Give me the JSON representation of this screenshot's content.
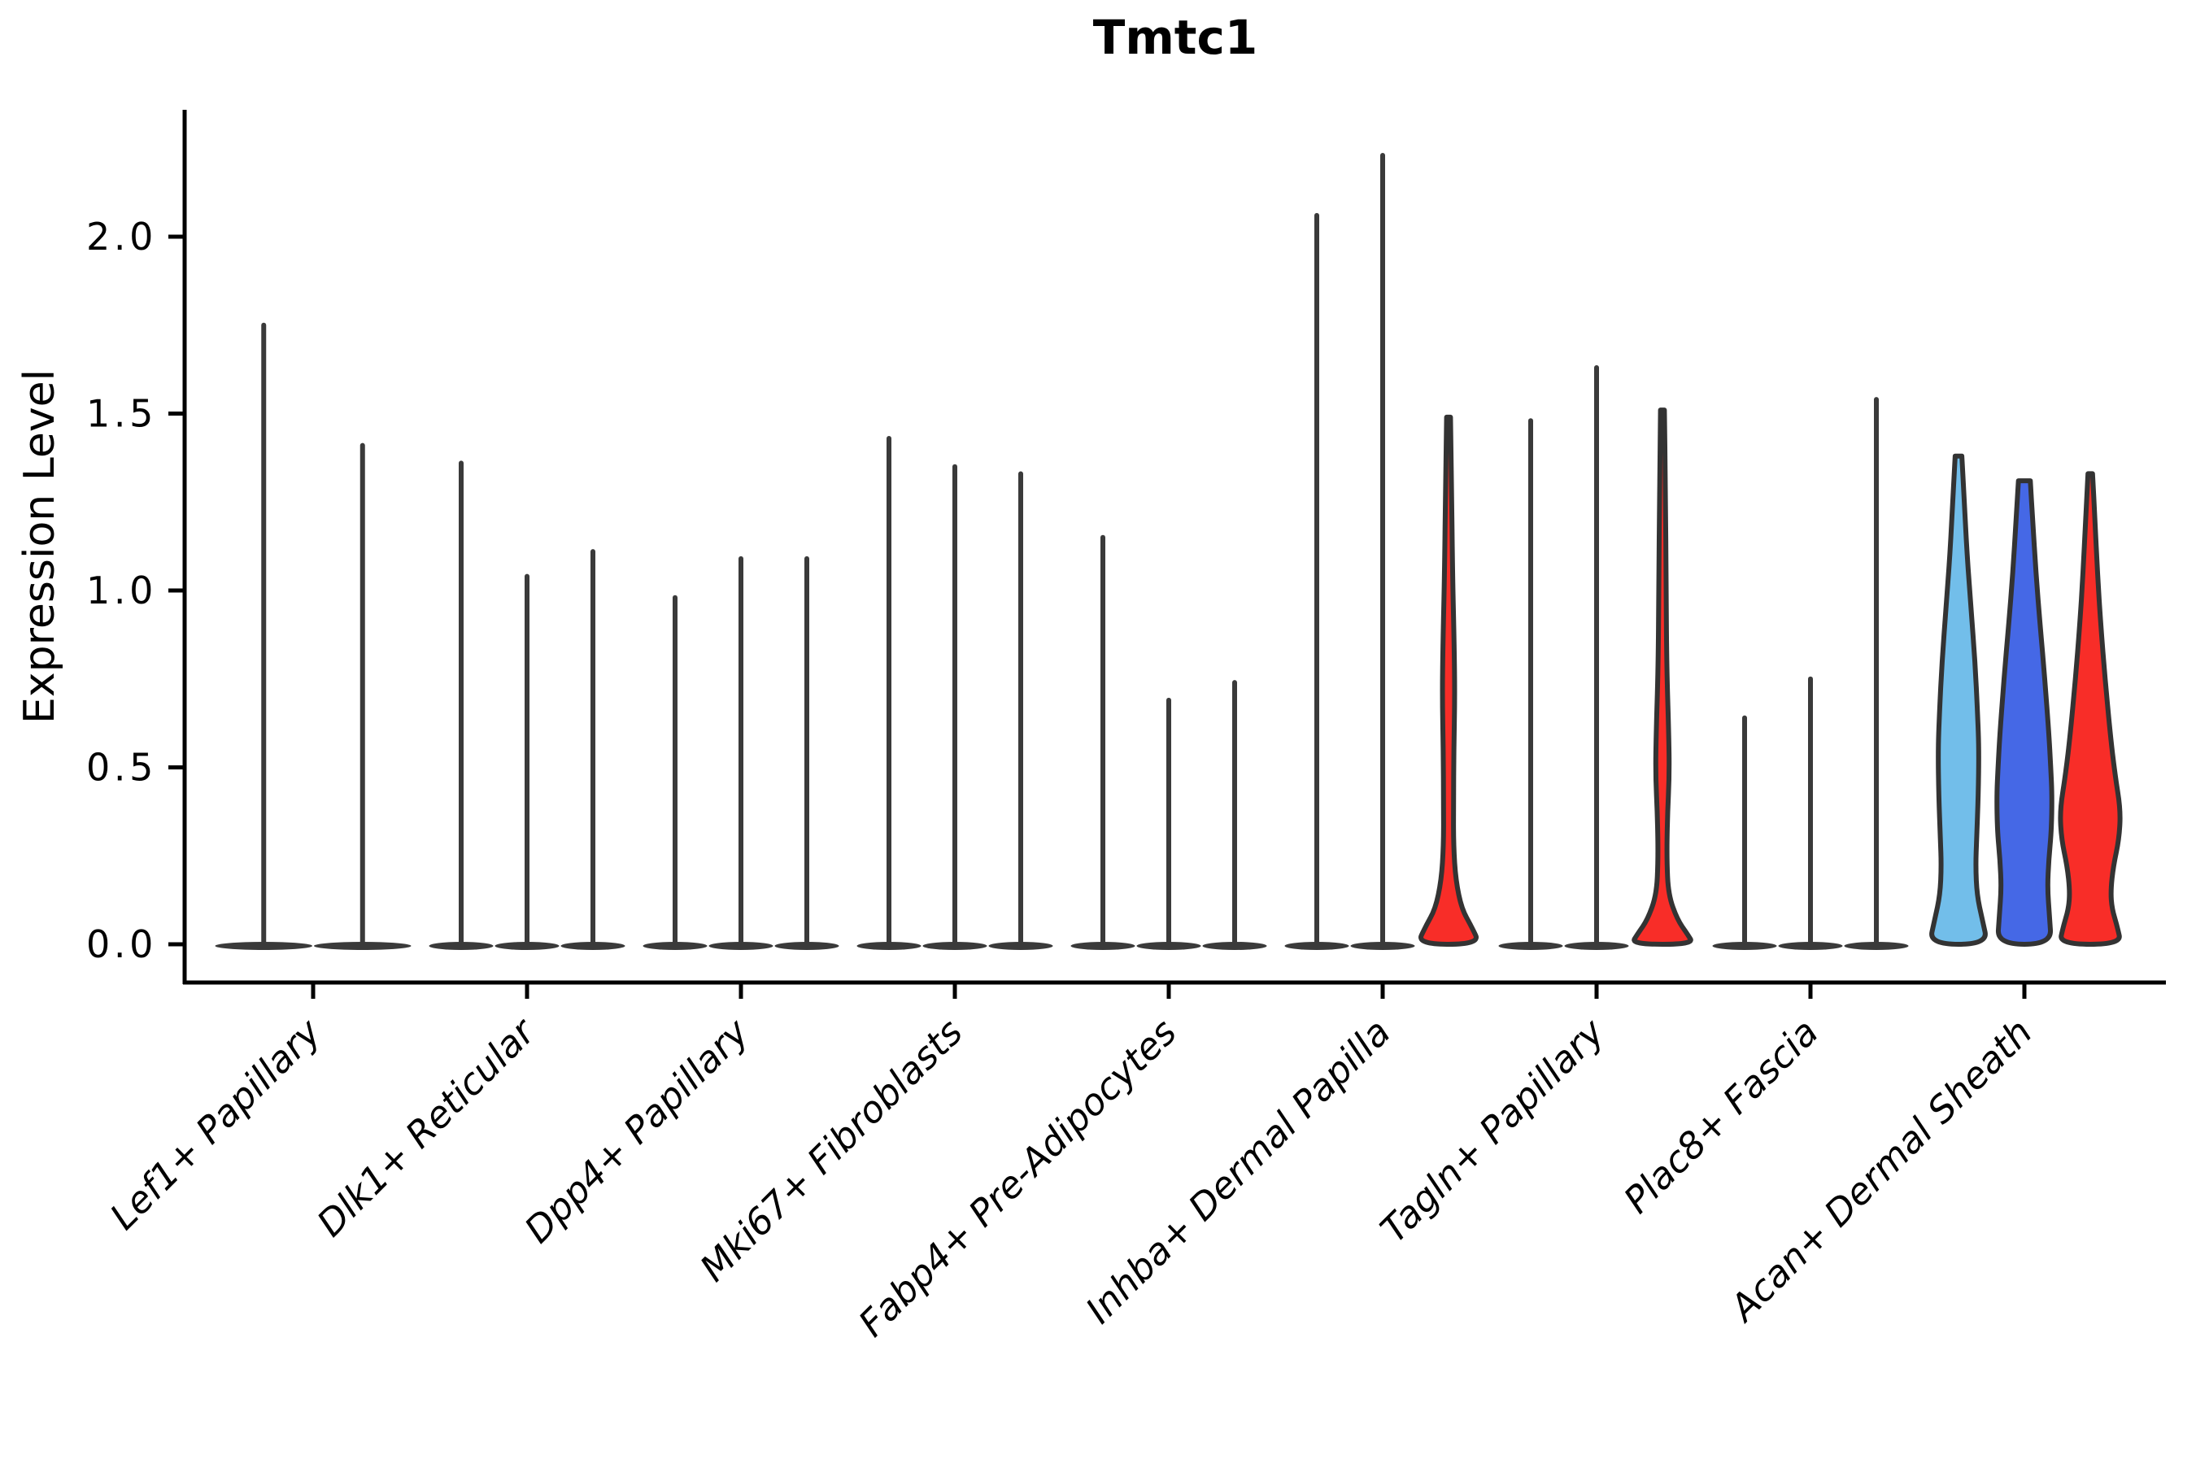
{
  "title": "Tmtc1",
  "y_axis": {
    "label": "Expression Level",
    "tick_labels": [
      "0.0",
      "0.5",
      "1.0",
      "1.5",
      "2.0"
    ]
  },
  "chart_data": {
    "type": "violin",
    "title": "Tmtc1",
    "xlabel": "",
    "ylabel": "Expression Level",
    "yticks": [
      0.0,
      0.5,
      1.0,
      1.5,
      2.0
    ],
    "ylim": [
      -0.11,
      2.36
    ],
    "grid": false,
    "legend": null,
    "colors": {
      "light_blue_fill": "#72BEEA",
      "blue_fill": "#4568E6",
      "red_fill": "#F82D28",
      "spike_stroke": "#3A3A3A",
      "violin_outline": "#333333",
      "axis": "#000000"
    },
    "categories": [
      "Lef1+ Papillary",
      "Dlk1+ Reticular",
      "Dpp4+ Papillary",
      "Mki67+ Fibroblasts",
      "Fabp4+ Pre-Adipocytes",
      "Inhba+ Dermal Papilla",
      "Tagln+ Papillary",
      "Plac8+ Fascia",
      "Acan+ Dermal Sheath"
    ],
    "groups": [
      {
        "label": "Lef1+ Papillary",
        "violins": [
          {
            "max": 1.75,
            "style": "spike"
          },
          {
            "max": 1.41,
            "style": "spike"
          }
        ]
      },
      {
        "label": "Dlk1+ Reticular",
        "violins": [
          {
            "max": 1.36,
            "style": "spike"
          },
          {
            "max": 1.04,
            "style": "spike"
          },
          {
            "max": 1.11,
            "style": "spike"
          }
        ]
      },
      {
        "label": "Dpp4+ Papillary",
        "violins": [
          {
            "max": 0.98,
            "style": "spike"
          },
          {
            "max": 1.09,
            "style": "spike"
          },
          {
            "max": 1.09,
            "style": "spike"
          }
        ]
      },
      {
        "label": "Mki67+ Fibroblasts",
        "violins": [
          {
            "max": 1.43,
            "style": "spike"
          },
          {
            "max": 1.35,
            "style": "spike"
          },
          {
            "max": 1.33,
            "style": "spike"
          }
        ]
      },
      {
        "label": "Fabp4+ Pre-Adipocytes",
        "violins": [
          {
            "max": 1.15,
            "style": "spike"
          },
          {
            "max": 0.69,
            "style": "spike"
          },
          {
            "max": 0.74,
            "style": "spike"
          }
        ]
      },
      {
        "label": "Inhba+ Dermal Papilla",
        "violins": [
          {
            "max": 2.06,
            "style": "spike"
          },
          {
            "max": 2.23,
            "style": "spike"
          },
          {
            "max": 1.49,
            "style": "violin",
            "color": "#F82D28",
            "profile": [
              [
                1.49,
                0.06
              ],
              [
                1.3,
                0.09
              ],
              [
                1.05,
                0.12
              ],
              [
                0.85,
                0.17
              ],
              [
                0.7,
                0.19
              ],
              [
                0.55,
                0.16
              ],
              [
                0.4,
                0.15
              ],
              [
                0.28,
                0.15
              ],
              [
                0.18,
                0.22
              ],
              [
                0.1,
                0.4
              ],
              [
                0.05,
                0.7
              ],
              [
                0.0,
                0.95
              ]
            ]
          }
        ]
      },
      {
        "label": "Tagln+ Papillary",
        "violins": [
          {
            "max": 1.48,
            "style": "spike"
          },
          {
            "max": 1.63,
            "style": "spike"
          },
          {
            "max": 1.51,
            "style": "violin",
            "color": "#F82D28",
            "profile": [
              [
                1.51,
                0.06
              ],
              [
                1.3,
                0.09
              ],
              [
                1.0,
                0.11
              ],
              [
                0.78,
                0.13
              ],
              [
                0.6,
                0.19
              ],
              [
                0.48,
                0.21
              ],
              [
                0.36,
                0.15
              ],
              [
                0.24,
                0.13
              ],
              [
                0.14,
                0.18
              ],
              [
                0.07,
                0.45
              ],
              [
                0.03,
                0.75
              ],
              [
                0.0,
                0.95
              ]
            ]
          }
        ]
      },
      {
        "label": "Plac8+ Fascia",
        "violins": [
          {
            "max": 0.64,
            "style": "spike"
          },
          {
            "max": 0.75,
            "style": "spike"
          },
          {
            "max": 1.54,
            "style": "spike"
          }
        ]
      },
      {
        "label": "Acan+ Dermal Sheath",
        "violins": [
          {
            "max": 1.38,
            "style": "violin",
            "color": "#72BEEA",
            "profile": [
              [
                1.38,
                0.1
              ],
              [
                1.28,
                0.16
              ],
              [
                1.1,
                0.26
              ],
              [
                0.95,
                0.38
              ],
              [
                0.8,
                0.5
              ],
              [
                0.65,
                0.58
              ],
              [
                0.55,
                0.62
              ],
              [
                0.42,
                0.6
              ],
              [
                0.3,
                0.55
              ],
              [
                0.22,
                0.52
              ],
              [
                0.14,
                0.56
              ],
              [
                0.07,
                0.72
              ],
              [
                0.0,
                0.89
              ]
            ]
          },
          {
            "max": 1.31,
            "style": "violin",
            "color": "#4568E6",
            "profile": [
              [
                1.31,
                0.18
              ],
              [
                1.2,
                0.25
              ],
              [
                1.05,
                0.35
              ],
              [
                0.9,
                0.48
              ],
              [
                0.75,
                0.62
              ],
              [
                0.6,
                0.74
              ],
              [
                0.5,
                0.8
              ],
              [
                0.42,
                0.84
              ],
              [
                0.32,
                0.82
              ],
              [
                0.24,
                0.74
              ],
              [
                0.16,
                0.7
              ],
              [
                0.08,
                0.76
              ],
              [
                0.0,
                0.82
              ]
            ]
          },
          {
            "max": 1.33,
            "style": "violin",
            "color": "#F82D28",
            "profile": [
              [
                1.33,
                0.07
              ],
              [
                1.2,
                0.14
              ],
              [
                1.05,
                0.22
              ],
              [
                0.9,
                0.32
              ],
              [
                0.75,
                0.45
              ],
              [
                0.6,
                0.6
              ],
              [
                0.48,
                0.75
              ],
              [
                0.38,
                0.92
              ],
              [
                0.3,
                0.88
              ],
              [
                0.22,
                0.7
              ],
              [
                0.15,
                0.62
              ],
              [
                0.1,
                0.66
              ],
              [
                0.05,
                0.82
              ],
              [
                0.0,
                0.94
              ]
            ]
          }
        ]
      }
    ]
  }
}
